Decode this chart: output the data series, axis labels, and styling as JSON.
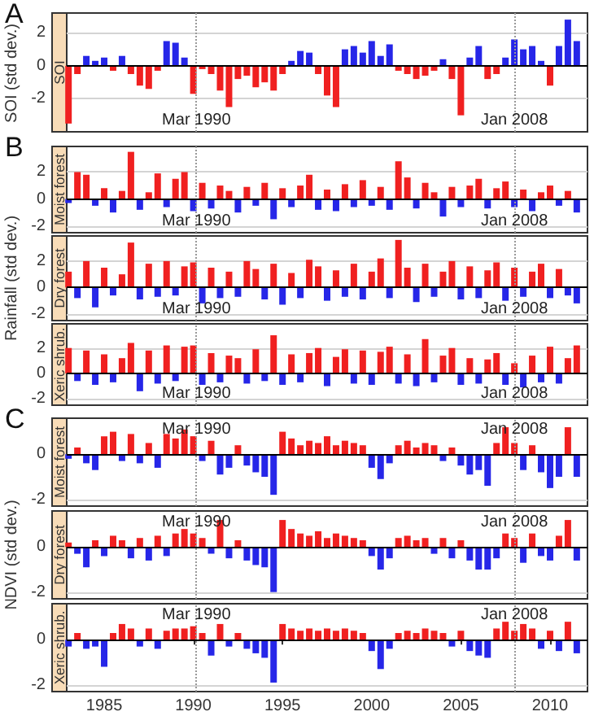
{
  "chart_data": [
    {
      "type": "bar",
      "title": "SOI",
      "ylabel": "SOI (std dev.)",
      "annotations": [
        "A"
      ],
      "x": [
        1983,
        1983.5,
        1984,
        1984.5,
        1985,
        1985.5,
        1986,
        1986.5,
        1987,
        1987.5,
        1988,
        1988.5,
        1989,
        1989.5,
        1990,
        1990.5,
        1991,
        1991.5,
        1992,
        1992.5,
        1993,
        1993.5,
        1994,
        1994.5,
        1995,
        1995.5,
        1996,
        1996.5,
        1997,
        1997.5,
        1998,
        1998.5,
        1999,
        1999.5,
        2000,
        2000.5,
        2001,
        2001.5,
        2002,
        2002.5,
        2003,
        2003.5,
        2004,
        2004.5,
        2005,
        2005.5,
        2006,
        2006.5,
        2007,
        2007.5,
        2008,
        2008.5,
        2009,
        2009.5,
        2010,
        2010.5,
        2011,
        2011.5
      ],
      "series": [
        {
          "color": "#2626e8",
          "values": [
            null,
            null,
            0.6,
            0.3,
            0.5,
            null,
            0.6,
            null,
            null,
            null,
            null,
            1.5,
            1.4,
            0.5,
            null,
            null,
            null,
            null,
            null,
            null,
            null,
            null,
            null,
            null,
            null,
            0.3,
            0.9,
            0.8,
            null,
            null,
            null,
            1.0,
            1.2,
            0.8,
            1.5,
            0.6,
            1.3,
            null,
            null,
            null,
            null,
            null,
            0.4,
            null,
            null,
            0.5,
            1.2,
            null,
            null,
            0.5,
            1.6,
            1.0,
            1.2,
            0.3,
            null,
            1.2,
            2.8,
            1.5
          ]
        },
        {
          "color": "#f02020",
          "values": [
            -3.5,
            -0.5,
            null,
            null,
            null,
            -0.3,
            null,
            -0.5,
            -1.2,
            -1.4,
            -0.3,
            null,
            null,
            null,
            -1.7,
            -0.2,
            -0.5,
            -1.5,
            -2.5,
            -0.8,
            -0.6,
            -1.3,
            -1.0,
            -1.5,
            -0.5,
            null,
            null,
            null,
            -0.5,
            -1.8,
            -2.5,
            null,
            null,
            null,
            null,
            null,
            null,
            -0.3,
            -0.5,
            -0.8,
            -0.6,
            -0.3,
            null,
            -0.8,
            -3.0,
            null,
            null,
            -0.8,
            -0.5,
            null,
            null,
            null,
            null,
            null,
            -1.2,
            null,
            null,
            null
          ]
        }
      ],
      "xlim": [
        1982.9,
        2012.1
      ],
      "ylim": [
        -4,
        3.2
      ],
      "xticks": [
        1985,
        1990,
        1995,
        2000,
        2005,
        2010
      ],
      "yticks": [
        -2,
        0,
        2
      ],
      "grid": "y",
      "tick_labels": "y",
      "ref_lines": [
        {
          "axis": "x",
          "value": 1990.17,
          "label": "Mar 1990",
          "color": "#999999",
          "line_style": "dotted"
        },
        {
          "axis": "x",
          "value": 2008.0,
          "label": "Jan 2008",
          "color": "#999999",
          "line_style": "dotted"
        },
        {
          "axis": "y",
          "value": 0,
          "color": "#000000",
          "line_style": "solid"
        }
      ]
    },
    {
      "type": "bar",
      "title": "Moist forest",
      "annotations": [
        "B"
      ],
      "x": [
        1983,
        1983.5,
        1984,
        1984.5,
        1985,
        1985.5,
        1986,
        1986.5,
        1987,
        1987.5,
        1988,
        1988.5,
        1989,
        1989.5,
        1990,
        1990.5,
        1991,
        1991.5,
        1992,
        1992.5,
        1993,
        1993.5,
        1994,
        1994.5,
        1995,
        1995.5,
        1996,
        1996.5,
        1997,
        1997.5,
        1998,
        1998.5,
        1999,
        1999.5,
        2000,
        2000.5,
        2001,
        2001.5,
        2002,
        2002.5,
        2003,
        2003.5,
        2004,
        2004.5,
        2005,
        2005.5,
        2006,
        2006.5,
        2007,
        2007.5,
        2008,
        2008.5,
        2009,
        2009.5,
        2010,
        2010.5,
        2011,
        2011.5
      ],
      "series": [
        {
          "color": "#f02020",
          "values": [
            null,
            2.0,
            1.8,
            null,
            0.8,
            null,
            0.6,
            3.5,
            null,
            0.5,
            1.9,
            null,
            1.5,
            2.0,
            null,
            1.2,
            null,
            1.0,
            0.6,
            null,
            0.9,
            null,
            1.2,
            null,
            0.8,
            null,
            1.0,
            1.8,
            null,
            0.7,
            null,
            1.1,
            null,
            1.4,
            null,
            0.9,
            null,
            2.8,
            1.6,
            null,
            1.2,
            0.5,
            null,
            0.9,
            null,
            1.0,
            1.5,
            null,
            0.8,
            1.3,
            null,
            0.7,
            null,
            0.5,
            1.0,
            null,
            0.6,
            null
          ]
        },
        {
          "color": "#2626e8",
          "values": [
            -0.3,
            null,
            null,
            -0.5,
            null,
            -1.0,
            null,
            null,
            -0.8,
            null,
            null,
            -0.6,
            null,
            null,
            -0.9,
            null,
            -0.7,
            null,
            null,
            -1.0,
            null,
            -0.5,
            null,
            -1.5,
            null,
            -0.6,
            null,
            null,
            -0.8,
            null,
            -0.9,
            null,
            -0.6,
            null,
            -0.5,
            null,
            -0.8,
            null,
            null,
            -0.7,
            null,
            null,
            -1.3,
            null,
            -0.6,
            null,
            null,
            -0.7,
            null,
            null,
            -0.6,
            null,
            -0.9,
            null,
            null,
            -0.5,
            null,
            -1.0
          ]
        }
      ],
      "xlim": [
        1982.9,
        2012.1
      ],
      "ylim": [
        -2.5,
        3.9
      ],
      "xticks": [
        1985,
        1990,
        1995,
        2000,
        2005,
        2010
      ],
      "yticks": [
        -2,
        0,
        2
      ],
      "grid": "y",
      "tick_labels": "y",
      "ref_lines": [
        {
          "axis": "x",
          "value": 1990.17,
          "label": "Mar 1990",
          "color": "#999999",
          "line_style": "dotted"
        },
        {
          "axis": "x",
          "value": 2008.0,
          "label": "Jan 2008",
          "color": "#999999",
          "line_style": "dotted"
        },
        {
          "axis": "y",
          "value": 0,
          "color": "#000000",
          "line_style": "solid"
        }
      ]
    },
    {
      "type": "bar",
      "title": "Dry forest",
      "ylabel": "Rainfall (std dev.)",
      "x": [
        1983,
        1983.5,
        1984,
        1984.5,
        1985,
        1985.5,
        1986,
        1986.5,
        1987,
        1987.5,
        1988,
        1988.5,
        1989,
        1989.5,
        1990,
        1990.5,
        1991,
        1991.5,
        1992,
        1992.5,
        1993,
        1993.5,
        1994,
        1994.5,
        1995,
        1995.5,
        1996,
        1996.5,
        1997,
        1997.5,
        1998,
        1998.5,
        1999,
        1999.5,
        2000,
        2000.5,
        2001,
        2001.5,
        2002,
        2002.5,
        2003,
        2003.5,
        2004,
        2004.5,
        2005,
        2005.5,
        2006,
        2006.5,
        2007,
        2007.5,
        2008,
        2008.5,
        2009,
        2009.5,
        2010,
        2010.5,
        2011,
        2011.5
      ],
      "series": [
        {
          "color": "#f02020",
          "values": [
            1.2,
            null,
            2.0,
            null,
            1.5,
            null,
            1.0,
            3.4,
            null,
            1.8,
            null,
            2.0,
            null,
            1.6,
            1.9,
            null,
            1.5,
            null,
            1.2,
            null,
            2.0,
            1.4,
            null,
            1.8,
            null,
            1.1,
            null,
            2.1,
            1.6,
            null,
            1.3,
            null,
            1.8,
            null,
            1.2,
            2.2,
            null,
            3.6,
            1.5,
            null,
            1.8,
            null,
            1.2,
            2.0,
            null,
            1.6,
            null,
            1.3,
            1.9,
            null,
            1.5,
            null,
            1.2,
            1.8,
            null,
            1.4,
            null,
            null
          ]
        },
        {
          "color": "#2626e8",
          "values": [
            null,
            -0.8,
            null,
            -1.5,
            null,
            -0.6,
            null,
            null,
            -0.9,
            null,
            -0.7,
            null,
            -0.6,
            null,
            null,
            -1.2,
            null,
            -0.8,
            null,
            -0.7,
            null,
            null,
            -0.9,
            null,
            -1.3,
            null,
            -0.8,
            null,
            null,
            -1.0,
            null,
            -0.7,
            null,
            -0.9,
            null,
            null,
            -0.8,
            null,
            null,
            -1.1,
            null,
            -0.7,
            null,
            null,
            -0.9,
            null,
            -0.8,
            null,
            null,
            -1.0,
            null,
            -0.7,
            null,
            null,
            -0.8,
            null,
            -0.6,
            -1.2
          ]
        }
      ],
      "xlim": [
        1982.9,
        2012.1
      ],
      "ylim": [
        -2.5,
        3.9
      ],
      "xticks": [
        1985,
        1990,
        1995,
        2000,
        2005,
        2010
      ],
      "yticks": [
        -2,
        0,
        2
      ],
      "grid": "y",
      "tick_labels": "y",
      "ref_lines": [
        {
          "axis": "x",
          "value": 1990.17,
          "label": "Mar 1990",
          "color": "#999999",
          "line_style": "dotted"
        },
        {
          "axis": "x",
          "value": 2008.0,
          "label": "Jan 2008",
          "color": "#999999",
          "line_style": "dotted"
        },
        {
          "axis": "y",
          "value": 0,
          "color": "#000000",
          "line_style": "solid"
        }
      ]
    },
    {
      "type": "bar",
      "title": "Xeric shrub.",
      "x": [
        1983,
        1983.5,
        1984,
        1984.5,
        1985,
        1985.5,
        1986,
        1986.5,
        1987,
        1987.5,
        1988,
        1988.5,
        1989,
        1989.5,
        1990,
        1990.5,
        1991,
        1991.5,
        1992,
        1992.5,
        1993,
        1993.5,
        1994,
        1994.5,
        1995,
        1995.5,
        1996,
        1996.5,
        1997,
        1997.5,
        1998,
        1998.5,
        1999,
        1999.5,
        2000,
        2000.5,
        2001,
        2001.5,
        2002,
        2002.5,
        2003,
        2003.5,
        2004,
        2004.5,
        2005,
        2005.5,
        2006,
        2006.5,
        2007,
        2007.5,
        2008,
        2008.5,
        2009,
        2009.5,
        2010,
        2010.5,
        2011,
        2011.5
      ],
      "series": [
        {
          "color": "#f02020",
          "values": [
            2.0,
            null,
            1.8,
            null,
            1.5,
            null,
            1.2,
            2.4,
            null,
            1.8,
            null,
            2.2,
            null,
            2.1,
            2.2,
            null,
            1.6,
            null,
            1.4,
            1.2,
            null,
            1.9,
            null,
            3.0,
            null,
            1.5,
            null,
            1.6,
            2.0,
            null,
            1.3,
            1.9,
            null,
            1.8,
            null,
            1.7,
            2.1,
            null,
            1.5,
            null,
            2.7,
            null,
            1.4,
            2.0,
            null,
            1.2,
            null,
            1.1,
            1.6,
            null,
            0.8,
            null,
            1.4,
            null,
            2.1,
            null,
            1.2,
            2.2
          ]
        },
        {
          "color": "#2626e8",
          "values": [
            null,
            -0.6,
            null,
            -0.9,
            null,
            -0.7,
            null,
            null,
            -1.4,
            null,
            -0.8,
            null,
            -0.6,
            null,
            null,
            -0.9,
            null,
            -0.7,
            null,
            null,
            -0.8,
            null,
            -0.6,
            null,
            -0.9,
            null,
            -0.7,
            null,
            null,
            -1.0,
            null,
            null,
            -0.8,
            null,
            -0.9,
            null,
            null,
            -0.8,
            null,
            -1.0,
            null,
            -0.7,
            null,
            null,
            -0.9,
            null,
            -0.8,
            null,
            null,
            -0.9,
            null,
            -1.1,
            null,
            -0.7,
            null,
            -0.8,
            null,
            null
          ]
        }
      ],
      "xlim": [
        1982.9,
        2012.1
      ],
      "ylim": [
        -2.5,
        3.9
      ],
      "xticks": [
        1985,
        1990,
        1995,
        2000,
        2005,
        2010
      ],
      "yticks": [
        -2,
        0,
        2
      ],
      "grid": "y",
      "tick_labels": "y",
      "ref_lines": [
        {
          "axis": "x",
          "value": 1990.17,
          "label": "Mar 1990",
          "color": "#999999",
          "line_style": "dotted"
        },
        {
          "axis": "x",
          "value": 2008.0,
          "label": "Jan 2008",
          "color": "#999999",
          "line_style": "dotted"
        },
        {
          "axis": "y",
          "value": 0,
          "color": "#000000",
          "line_style": "solid"
        }
      ]
    },
    {
      "type": "bar",
      "title": "Moist forest",
      "annotations": [
        "C"
      ],
      "x": [
        1983,
        1983.5,
        1984,
        1984.5,
        1985,
        1985.5,
        1986,
        1986.5,
        1987,
        1987.5,
        1988,
        1988.5,
        1989,
        1989.5,
        1990,
        1990.5,
        1991,
        1991.5,
        1992,
        1992.5,
        1993,
        1993.5,
        1994,
        1994.5,
        1995,
        1995.5,
        1996,
        1996.5,
        1997,
        1997.5,
        1998,
        1998.5,
        1999,
        1999.5,
        2000,
        2000.5,
        2001,
        2001.5,
        2002,
        2002.5,
        2003,
        2003.5,
        2004,
        2004.5,
        2005,
        2005.5,
        2006,
        2006.5,
        2007,
        2007.5,
        2008,
        2008.5,
        2009,
        2009.5,
        2010,
        2010.5,
        2011,
        2011.5
      ],
      "series": [
        {
          "color": "#f02020",
          "values": [
            null,
            0.3,
            null,
            null,
            0.8,
            1.0,
            null,
            0.9,
            null,
            0.5,
            null,
            0.9,
            0.7,
            1.1,
            0.8,
            null,
            0.6,
            null,
            null,
            0.4,
            null,
            null,
            null,
            null,
            1.0,
            0.7,
            0.4,
            0.6,
            0.5,
            0.8,
            0.4,
            0.6,
            0.5,
            0.4,
            null,
            null,
            null,
            0.4,
            0.6,
            0.3,
            0.5,
            0.4,
            null,
            0.3,
            null,
            null,
            null,
            null,
            0.5,
            1.2,
            0.5,
            null,
            0.4,
            null,
            null,
            null,
            1.2,
            null
          ]
        },
        {
          "color": "#2626e8",
          "values": [
            -0.2,
            null,
            -0.4,
            -0.7,
            null,
            null,
            -0.3,
            null,
            -0.4,
            null,
            -0.6,
            null,
            null,
            null,
            null,
            -0.3,
            null,
            -0.9,
            -0.6,
            null,
            -0.5,
            -0.8,
            -1.0,
            -1.8,
            null,
            null,
            null,
            null,
            null,
            null,
            null,
            null,
            null,
            null,
            -0.6,
            -1.1,
            -0.4,
            null,
            null,
            null,
            null,
            null,
            -0.3,
            null,
            -0.5,
            -0.9,
            -0.7,
            -1.4,
            null,
            null,
            null,
            -0.7,
            null,
            -0.8,
            -1.5,
            -1.0,
            null,
            -1.0
          ]
        }
      ],
      "xlim": [
        1982.9,
        2012.1
      ],
      "ylim": [
        -2.3,
        1.6
      ],
      "xticks": [
        1985,
        1990,
        1995,
        2000,
        2005,
        2010
      ],
      "yticks": [
        -2,
        0
      ],
      "tick_labels": "y",
      "ref_lines": [
        {
          "axis": "y",
          "value": -2,
          "color": "#d4d4d4",
          "line_style": "solid"
        },
        {
          "axis": "x",
          "value": 1990.17,
          "label": "Mar 1990",
          "color": "#999999",
          "line_style": "dotted"
        },
        {
          "axis": "x",
          "value": 2008.0,
          "label": "Jan 2008",
          "color": "#999999",
          "line_style": "dotted"
        },
        {
          "axis": "y",
          "value": 0,
          "color": "#000000",
          "line_style": "solid"
        }
      ]
    },
    {
      "type": "bar",
      "title": "Dry forest",
      "ylabel": "NDVI (std dev.)",
      "x": [
        1983,
        1983.5,
        1984,
        1984.5,
        1985,
        1985.5,
        1986,
        1986.5,
        1987,
        1987.5,
        1988,
        1988.5,
        1989,
        1989.5,
        1990,
        1990.5,
        1991,
        1991.5,
        1992,
        1992.5,
        1993,
        1993.5,
        1994,
        1994.5,
        1995,
        1995.5,
        1996,
        1996.5,
        1997,
        1997.5,
        1998,
        1998.5,
        1999,
        1999.5,
        2000,
        2000.5,
        2001,
        2001.5,
        2002,
        2002.5,
        2003,
        2003.5,
        2004,
        2004.5,
        2005,
        2005.5,
        2006,
        2006.5,
        2007,
        2007.5,
        2008,
        2008.5,
        2009,
        2009.5,
        2010,
        2010.5,
        2011,
        2011.5
      ],
      "series": [
        {
          "color": "#f02020",
          "values": [
            0.2,
            null,
            null,
            0.3,
            null,
            0.5,
            0.3,
            null,
            0.4,
            null,
            0.5,
            null,
            0.6,
            0.8,
            0.6,
            0.4,
            null,
            1.2,
            null,
            0.3,
            null,
            null,
            null,
            null,
            1.2,
            0.8,
            0.6,
            0.5,
            0.7,
            0.4,
            0.6,
            0.5,
            0.4,
            0.3,
            null,
            null,
            null,
            0.4,
            0.5,
            0.3,
            0.4,
            null,
            0.4,
            null,
            0.3,
            null,
            null,
            null,
            null,
            0.6,
            0.4,
            null,
            0.6,
            null,
            null,
            0.5,
            1.2,
            null
          ]
        },
        {
          "color": "#2626e8",
          "values": [
            null,
            -0.3,
            -0.9,
            null,
            -0.4,
            null,
            null,
            -0.5,
            null,
            -0.6,
            null,
            -0.4,
            null,
            null,
            null,
            null,
            -0.3,
            null,
            -0.5,
            null,
            -0.6,
            -0.8,
            -0.9,
            -2.0,
            null,
            null,
            null,
            null,
            null,
            null,
            null,
            null,
            null,
            null,
            -0.4,
            -1.0,
            -0.5,
            null,
            null,
            null,
            null,
            -0.3,
            null,
            -0.5,
            null,
            -0.6,
            -1.0,
            -1.0,
            -0.5,
            null,
            null,
            -0.7,
            null,
            -0.4,
            -0.6,
            null,
            null,
            -0.6
          ]
        }
      ],
      "xlim": [
        1982.9,
        2012.1
      ],
      "ylim": [
        -2.3,
        1.6
      ],
      "xticks": [
        1985,
        1990,
        1995,
        2000,
        2005,
        2010
      ],
      "yticks": [
        -2,
        0
      ],
      "tick_labels": "y",
      "ref_lines": [
        {
          "axis": "y",
          "value": -2,
          "color": "#d4d4d4",
          "line_style": "solid"
        },
        {
          "axis": "x",
          "value": 1990.17,
          "label": "Mar 1990",
          "color": "#999999",
          "line_style": "dotted"
        },
        {
          "axis": "x",
          "value": 2008.0,
          "label": "Jan 2008",
          "color": "#999999",
          "line_style": "dotted"
        },
        {
          "axis": "y",
          "value": 0,
          "color": "#000000",
          "line_style": "solid"
        }
      ]
    },
    {
      "type": "bar",
      "title": "Xeric shrub.",
      "x": [
        1983,
        1983.5,
        1984,
        1984.5,
        1985,
        1985.5,
        1986,
        1986.5,
        1987,
        1987.5,
        1988,
        1988.5,
        1989,
        1989.5,
        1990,
        1990.5,
        1991,
        1991.5,
        1992,
        1992.5,
        1993,
        1993.5,
        1994,
        1994.5,
        1995,
        1995.5,
        1996,
        1996.5,
        1997,
        1997.5,
        1998,
        1998.5,
        1999,
        1999.5,
        2000,
        2000.5,
        2001,
        2001.5,
        2002,
        2002.5,
        2003,
        2003.5,
        2004,
        2004.5,
        2005,
        2005.5,
        2006,
        2006.5,
        2007,
        2007.5,
        2008,
        2008.5,
        2009,
        2009.5,
        2010,
        2010.5,
        2011,
        2011.5
      ],
      "series": [
        {
          "color": "#f02020",
          "values": [
            null,
            0.3,
            null,
            null,
            null,
            0.3,
            0.7,
            0.5,
            null,
            0.5,
            null,
            0.4,
            0.5,
            0.5,
            0.6,
            0.3,
            null,
            0.7,
            null,
            0.3,
            null,
            null,
            null,
            null,
            0.7,
            0.5,
            0.4,
            0.5,
            0.4,
            0.5,
            0.4,
            0.5,
            0.4,
            0.3,
            null,
            null,
            null,
            0.3,
            0.4,
            0.3,
            0.5,
            0.4,
            0.3,
            null,
            0.4,
            null,
            null,
            null,
            0.5,
            0.8,
            0.4,
            0.7,
            0.5,
            null,
            0.4,
            null,
            0.8,
            null
          ]
        },
        {
          "color": "#2626e8",
          "values": [
            -0.3,
            null,
            -0.4,
            -0.3,
            -1.2,
            null,
            null,
            null,
            -0.3,
            null,
            -0.4,
            null,
            null,
            null,
            null,
            null,
            -0.7,
            null,
            -0.3,
            null,
            -0.4,
            -0.6,
            -0.8,
            -1.9,
            null,
            null,
            null,
            null,
            null,
            null,
            null,
            null,
            null,
            null,
            -0.5,
            -1.3,
            -0.4,
            null,
            null,
            null,
            null,
            null,
            null,
            -0.3,
            null,
            -0.5,
            -0.7,
            -0.8,
            null,
            null,
            null,
            null,
            null,
            -0.4,
            null,
            -0.5,
            null,
            -0.6
          ]
        }
      ],
      "xlim": [
        1982.9,
        2012.1
      ],
      "ylim": [
        -2.3,
        1.6
      ],
      "xticks": [
        1985,
        1990,
        1995,
        2000,
        2005,
        2010
      ],
      "yticks": [
        -2,
        0
      ],
      "ref_lines": [
        {
          "axis": "y",
          "value": -2,
          "color": "#d4d4d4",
          "line_style": "solid"
        },
        {
          "axis": "x",
          "value": 1990.17,
          "label": "Mar 1990",
          "color": "#999999",
          "line_style": "dotted"
        },
        {
          "axis": "x",
          "value": 2008.0,
          "label": "Jan 2008",
          "color": "#999999",
          "line_style": "dotted"
        },
        {
          "axis": "y",
          "value": 0,
          "color": "#000000",
          "line_style": "solid"
        }
      ]
    }
  ]
}
